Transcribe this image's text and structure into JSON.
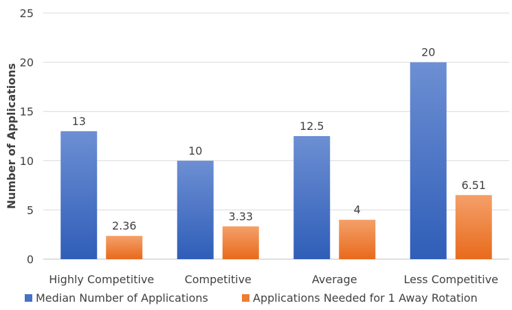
{
  "chart_data": {
    "type": "bar",
    "title": "",
    "xlabel": "",
    "ylabel": "Number of Applications",
    "ylim": [
      0,
      25
    ],
    "yticks": [
      0,
      5,
      10,
      15,
      20,
      25
    ],
    "grid": true,
    "legend_position": "bottom",
    "categories": [
      "Highly Competitive",
      "Competitive",
      "Average",
      "Less Competitive"
    ],
    "series": [
      {
        "name": "Median Number of Applications",
        "values": [
          13,
          10,
          12.5,
          20
        ],
        "labels": [
          "13",
          "10",
          "12.5",
          "20"
        ],
        "color": "#4472C4"
      },
      {
        "name": "Applications Needed for 1 Away Rotation",
        "values": [
          2.36,
          3.33,
          4,
          6.51
        ],
        "labels": [
          "2.36",
          "3.33",
          "4",
          "6.51"
        ],
        "color": "#ED7D31"
      }
    ]
  }
}
